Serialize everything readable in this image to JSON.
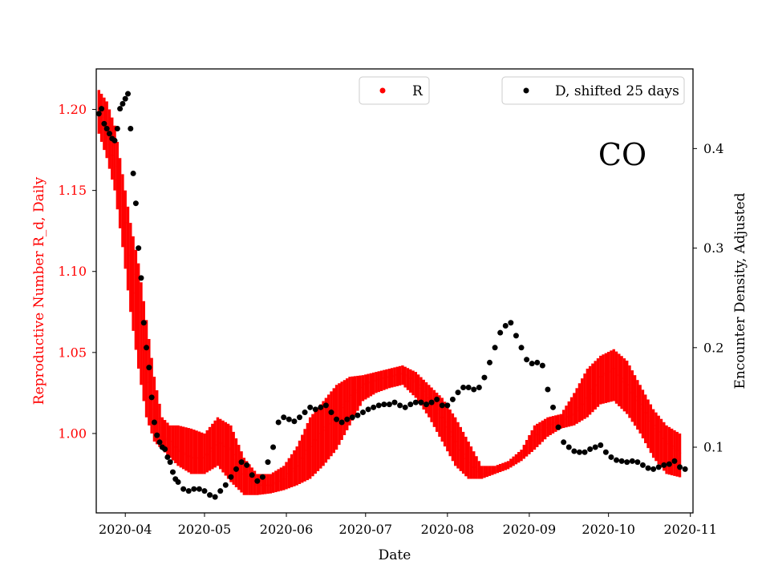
{
  "chart_data": {
    "type": "scatter",
    "title": "",
    "annotation": "CO",
    "xlabel": "Date",
    "ylabel_left": "Reproductive Number R_d, Daily",
    "ylabel_right": "Encounter Density, Adjusted",
    "x_tick_labels": [
      "2020-04",
      "2020-05",
      "2020-06",
      "2020-07",
      "2020-08",
      "2020-09",
      "2020-10",
      "2020-11"
    ],
    "x_tick_days": [
      0,
      30,
      61,
      91,
      122,
      153,
      183,
      214
    ],
    "x_range_days": [
      -11,
      215
    ],
    "y_left_ticks": [
      "1.00",
      "1.05",
      "1.10",
      "1.15",
      "1.20"
    ],
    "y_left_range": [
      0.951,
      1.225
    ],
    "y_right_ticks": [
      "0.1",
      "0.2",
      "0.3",
      "0.4"
    ],
    "y_right_range": [
      0.034,
      0.48
    ],
    "colors": {
      "R": "#ff0000",
      "D": "#000000",
      "left_axis_text": "#ff0000",
      "right_axis_text": "#000000"
    },
    "series": [
      {
        "name": "R",
        "legend_label": "R",
        "legend_position": "top-center",
        "note": "daily R value with upper/lower band (vertical red bars)",
        "days": [
          -10,
          -7,
          -4,
          -1,
          2,
          5,
          8,
          11,
          14,
          17,
          20,
          25,
          30,
          35,
          40,
          45,
          50,
          55,
          60,
          65,
          70,
          75,
          80,
          85,
          90,
          95,
          100,
          105,
          110,
          115,
          120,
          125,
          130,
          135,
          140,
          145,
          150,
          155,
          160,
          165,
          170,
          175,
          180,
          185,
          190,
          195,
          200,
          205,
          210
        ],
        "values": [
          1.2,
          1.185,
          1.165,
          1.14,
          1.11,
          1.075,
          1.04,
          1.015,
          0.998,
          0.995,
          0.99,
          0.985,
          0.985,
          0.995,
          0.99,
          0.975,
          0.968,
          0.968,
          0.972,
          0.98,
          0.992,
          1.002,
          1.012,
          1.022,
          1.03,
          1.033,
          1.035,
          1.037,
          1.032,
          1.022,
          1.01,
          0.995,
          0.982,
          0.975,
          0.977,
          0.98,
          0.987,
          0.998,
          1.005,
          1.008,
          1.012,
          1.022,
          1.035,
          1.04,
          1.03,
          1.018,
          1.005,
          0.995,
          0.988
        ],
        "lower": [
          1.185,
          1.17,
          1.15,
          1.115,
          1.075,
          1.04,
          1.01,
          0.995,
          0.99,
          0.985,
          0.98,
          0.975,
          0.975,
          0.98,
          0.97,
          0.962,
          0.962,
          0.963,
          0.965,
          0.968,
          0.972,
          0.98,
          0.99,
          1.005,
          1.02,
          1.025,
          1.028,
          1.03,
          1.022,
          1.01,
          0.995,
          0.98,
          0.972,
          0.972,
          0.975,
          0.978,
          0.983,
          0.99,
          0.998,
          1.003,
          1.005,
          1.01,
          1.018,
          1.02,
          1.012,
          1.0,
          0.985,
          0.975,
          0.973
        ],
        "upper": [
          1.212,
          1.205,
          1.19,
          1.16,
          1.13,
          1.105,
          1.07,
          1.035,
          1.01,
          1.005,
          1.005,
          1.003,
          1.0,
          1.01,
          1.005,
          0.985,
          0.975,
          0.975,
          0.98,
          0.992,
          1.01,
          1.02,
          1.03,
          1.035,
          1.036,
          1.038,
          1.04,
          1.042,
          1.038,
          1.03,
          1.022,
          1.01,
          0.995,
          0.98,
          0.98,
          0.983,
          0.99,
          1.005,
          1.01,
          1.012,
          1.025,
          1.04,
          1.048,
          1.052,
          1.045,
          1.03,
          1.015,
          1.005,
          1.0
        ]
      },
      {
        "name": "D, shifted 25 days",
        "legend_label": "D, shifted 25 days",
        "legend_position": "top-right",
        "axis": "right",
        "days": [
          -10,
          -9,
          -8,
          -7,
          -6,
          -5,
          -4,
          -3,
          -2,
          -1,
          0,
          1,
          2,
          3,
          4,
          5,
          6,
          7,
          8,
          9,
          10,
          11,
          12,
          13,
          14,
          15,
          16,
          17,
          18,
          19,
          20,
          22,
          24,
          26,
          28,
          30,
          32,
          34,
          36,
          38,
          40,
          42,
          44,
          46,
          48,
          50,
          52,
          54,
          56,
          58,
          60,
          62,
          64,
          66,
          68,
          70,
          72,
          74,
          76,
          78,
          80,
          82,
          84,
          86,
          88,
          90,
          92,
          94,
          96,
          98,
          100,
          102,
          104,
          106,
          108,
          110,
          112,
          114,
          116,
          118,
          120,
          122,
          124,
          126,
          128,
          130,
          132,
          134,
          136,
          138,
          140,
          142,
          144,
          146,
          148,
          150,
          152,
          154,
          156,
          158,
          160,
          162,
          164,
          166,
          168,
          170,
          172,
          174,
          176,
          178,
          180,
          182,
          184,
          186,
          188,
          190,
          192,
          194,
          196,
          198,
          200,
          202,
          204,
          206,
          208,
          210,
          212
        ],
        "values": [
          0.435,
          0.44,
          0.425,
          0.42,
          0.415,
          0.41,
          0.408,
          0.42,
          0.44,
          0.445,
          0.45,
          0.455,
          0.42,
          0.375,
          0.345,
          0.3,
          0.27,
          0.225,
          0.2,
          0.18,
          0.15,
          0.125,
          0.112,
          0.105,
          0.1,
          0.098,
          0.09,
          0.085,
          0.075,
          0.068,
          0.065,
          0.058,
          0.056,
          0.058,
          0.058,
          0.056,
          0.052,
          0.05,
          0.056,
          0.062,
          0.07,
          0.078,
          0.085,
          0.082,
          0.072,
          0.066,
          0.07,
          0.085,
          0.1,
          0.125,
          0.13,
          0.128,
          0.126,
          0.13,
          0.135,
          0.14,
          0.138,
          0.14,
          0.142,
          0.135,
          0.128,
          0.125,
          0.128,
          0.13,
          0.132,
          0.135,
          0.138,
          0.14,
          0.142,
          0.143,
          0.143,
          0.145,
          0.142,
          0.14,
          0.143,
          0.145,
          0.145,
          0.143,
          0.145,
          0.148,
          0.142,
          0.142,
          0.148,
          0.155,
          0.16,
          0.16,
          0.158,
          0.16,
          0.17,
          0.185,
          0.2,
          0.215,
          0.222,
          0.225,
          0.212,
          0.2,
          0.188,
          0.184,
          0.185,
          0.182,
          0.158,
          0.14,
          0.12,
          0.105,
          0.1,
          0.096,
          0.095,
          0.095,
          0.098,
          0.1,
          0.102,
          0.095,
          0.09,
          0.087,
          0.086,
          0.085,
          0.086,
          0.085,
          0.082,
          0.079,
          0.078,
          0.08,
          0.082,
          0.083,
          0.086,
          0.08,
          0.078
        ]
      }
    ]
  }
}
